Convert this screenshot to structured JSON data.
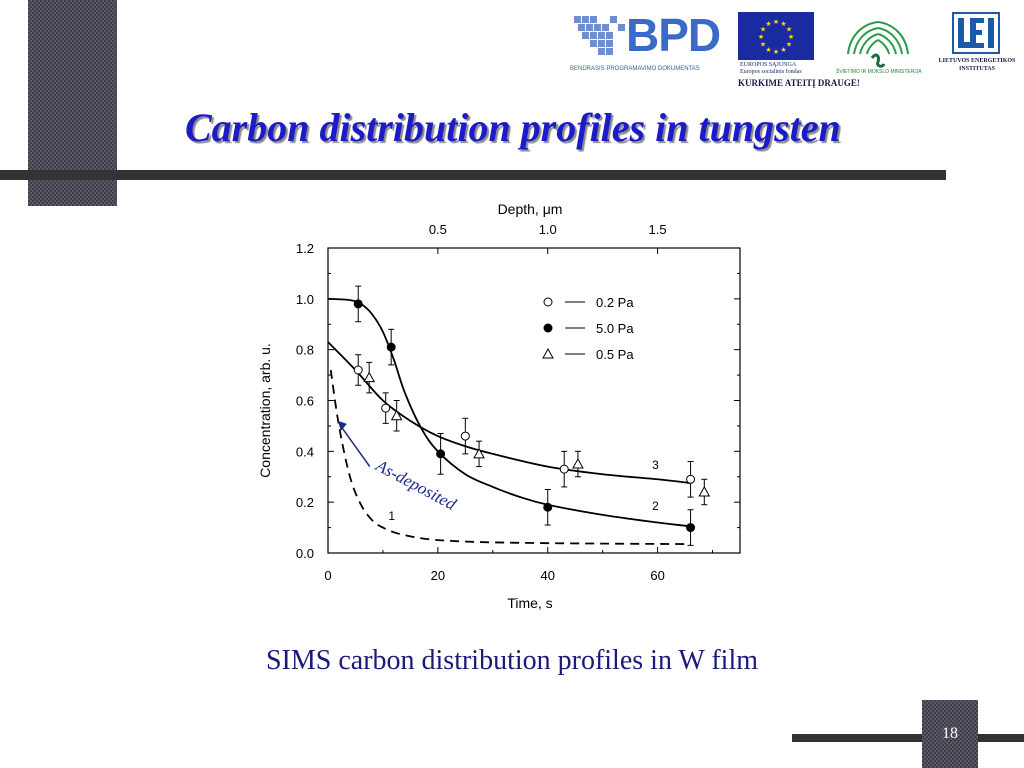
{
  "slide": {
    "title": "Carbon distribution profiles in tungsten",
    "caption": "SIMS carbon distribution profiles in W film",
    "number": "18"
  },
  "logos": {
    "bpd": {
      "wordmark": "BPD",
      "tagline": "BENDRASIS PROGRAMAVIMO DOKUMENTAS"
    },
    "eu": {
      "line1": "EUROPOS SĄJUNGA",
      "line2": "Europos socialinis fondas"
    },
    "ministry": {
      "caption": "ŠVIETIMO IR MOKSLO MINISTERIJA"
    },
    "lei": {
      "line1": "LIETUVOS ENERGETIKOS",
      "line2": "INSTITUTAS"
    },
    "slogan": "KURKIME ATEITĮ DRAUGE!"
  },
  "colors": {
    "title": "#1b1bc8",
    "caption": "#1a1a7a",
    "annotation": "#1a2a8a",
    "bar": "#333333"
  },
  "chart_data": {
    "type": "scatter",
    "xlabel": "Time, s",
    "ylabel": "Concentration, arb. u.",
    "top_xlabel": "Depth, μm",
    "xlim": [
      0,
      75
    ],
    "ylim": [
      0,
      1.2
    ],
    "xticks": [
      "0",
      "20",
      "40",
      "60"
    ],
    "yticks": [
      "0.0",
      "0.2",
      "0.4",
      "0.6",
      "0.8",
      "1.0",
      "1.2"
    ],
    "top_ticks": [
      {
        "label": "0.5",
        "time": 20
      },
      {
        "label": "1.0",
        "time": 40
      },
      {
        "label": "1.5",
        "time": 60
      }
    ],
    "grid": false,
    "legend_position": "top-right",
    "series": [
      {
        "name": "0.2 Pa",
        "marker": "open-circle",
        "points": [
          [
            5.5,
            0.72,
            0.06
          ],
          [
            10.5,
            0.57,
            0.06
          ],
          [
            25,
            0.46,
            0.07
          ],
          [
            43,
            0.33,
            0.07
          ],
          [
            66,
            0.29,
            0.07
          ]
        ]
      },
      {
        "name": "5.0 Pa",
        "marker": "filled-circle",
        "points": [
          [
            5.5,
            0.98,
            0.07
          ],
          [
            11.5,
            0.81,
            0.07
          ],
          [
            20.5,
            0.39,
            0.08
          ],
          [
            40,
            0.18,
            0.07
          ],
          [
            66,
            0.1,
            0.07
          ]
        ]
      },
      {
        "name": "0.5 Pa",
        "marker": "open-triangle",
        "points": [
          [
            7.5,
            0.69,
            0.06
          ],
          [
            12.5,
            0.54,
            0.06
          ],
          [
            27.5,
            0.39,
            0.05
          ],
          [
            45.5,
            0.35,
            0.05
          ],
          [
            68.5,
            0.24,
            0.05
          ]
        ]
      }
    ],
    "curves": [
      {
        "label": "1",
        "style": "dashed",
        "points": [
          [
            0.5,
            0.72
          ],
          [
            2,
            0.5
          ],
          [
            4,
            0.3
          ],
          [
            6,
            0.19
          ],
          [
            8,
            0.13
          ],
          [
            10,
            0.1
          ],
          [
            13,
            0.075
          ],
          [
            18,
            0.055
          ],
          [
            25,
            0.045
          ],
          [
            35,
            0.04
          ],
          [
            50,
            0.037
          ],
          [
            66,
            0.035
          ]
        ]
      },
      {
        "label": "2",
        "style": "solid",
        "points": [
          [
            0,
            1.0
          ],
          [
            4,
            0.995
          ],
          [
            6,
            0.98
          ],
          [
            8,
            0.94
          ],
          [
            10,
            0.87
          ],
          [
            12,
            0.76
          ],
          [
            14,
            0.63
          ],
          [
            17,
            0.49
          ],
          [
            20,
            0.4
          ],
          [
            25,
            0.31
          ],
          [
            30,
            0.26
          ],
          [
            35,
            0.22
          ],
          [
            40,
            0.19
          ],
          [
            50,
            0.15
          ],
          [
            60,
            0.12
          ],
          [
            66,
            0.105
          ]
        ]
      },
      {
        "label": "3",
        "style": "solid",
        "points": [
          [
            0,
            0.83
          ],
          [
            5,
            0.72
          ],
          [
            10,
            0.6
          ],
          [
            15,
            0.52
          ],
          [
            20,
            0.46
          ],
          [
            25,
            0.42
          ],
          [
            30,
            0.39
          ],
          [
            40,
            0.34
          ],
          [
            50,
            0.31
          ],
          [
            60,
            0.29
          ],
          [
            66,
            0.275
          ]
        ]
      }
    ],
    "annotations": [
      {
        "text": "As-deposited",
        "color": "#1a2a8a"
      }
    ]
  }
}
